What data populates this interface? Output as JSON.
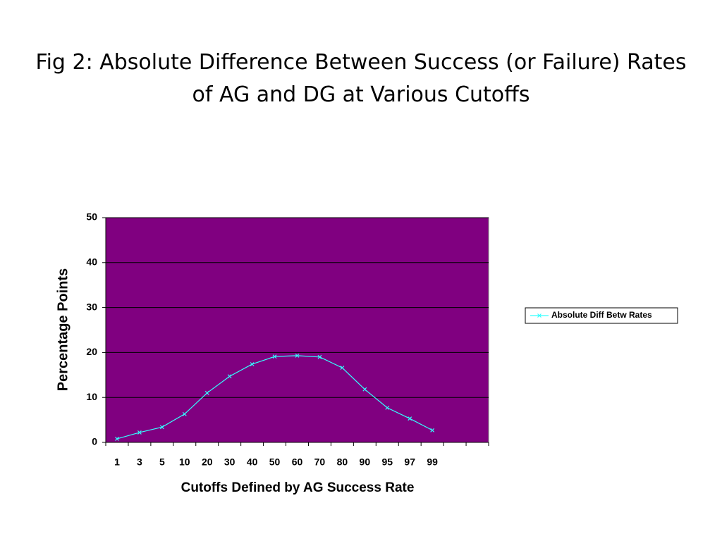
{
  "chart_data": {
    "type": "line",
    "title": "Fig 2: Absolute Difference Between Success (or Failure) Rates of AG and DG at Various Cutoffs",
    "x_label": "Cutoffs Defined by AG Success Rate",
    "y_label": "Percentage Points",
    "categories": [
      "1",
      "3",
      "5",
      "10",
      "20",
      "30",
      "40",
      "50",
      "60",
      "70",
      "80",
      "90",
      "95",
      "97",
      "99",
      null,
      null
    ],
    "series": [
      {
        "name": "Absolute Diff Betw Rates",
        "color": "#33ffff",
        "values": [
          0.8,
          2.2,
          3.4,
          6.3,
          11.0,
          14.7,
          17.4,
          19.1,
          19.3,
          19.0,
          16.6,
          11.8,
          7.7,
          5.3,
          2.7,
          null,
          null
        ]
      }
    ],
    "ylim": [
      0,
      50
    ],
    "yticks": [
      0,
      10,
      20,
      30,
      40,
      50
    ],
    "grid": true,
    "plot_background": "#800080",
    "legend": "right"
  }
}
